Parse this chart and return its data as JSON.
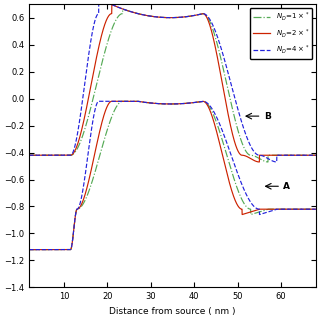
{
  "xlabel": "Distance from source ( nm )",
  "xlim": [
    2,
    68
  ],
  "ylim": [
    -1.4,
    0.7
  ],
  "xticks": [
    10,
    20,
    30,
    40,
    50,
    60
  ],
  "yticks": [
    -1.4,
    -1.2,
    -1.0,
    -0.8,
    -0.6,
    -0.4,
    -0.2,
    0.0,
    0.2,
    0.4,
    0.6
  ],
  "line_colors": [
    "#55aa55",
    "#cc2200",
    "#2222dd"
  ],
  "figsize": [
    3.2,
    3.2
  ],
  "dpi": 100,
  "src_cb": -0.42,
  "src_vb": -1.12,
  "chan_cb_peak": 0.63,
  "chan_vb_peak": -0.02,
  "drn_cb": -0.42,
  "drn_vb": -0.82,
  "src_flat_end": 11.5,
  "src_dip_end": 13.5,
  "chan_left_start_nd1": 22.0,
  "chan_left_start_nd2": 20.0,
  "chan_left_start_nd4": 17.0,
  "chan_peak_start": 27.0,
  "chan_peak_end": 42.0,
  "chan_right_end_nd1": 52.0,
  "chan_right_end_nd2": 50.0,
  "chan_right_end_nd4": 48.0,
  "drn_flat_nd1": 56.0,
  "drn_flat_nd2": 54.0,
  "drn_flat_nd4": 58.0
}
